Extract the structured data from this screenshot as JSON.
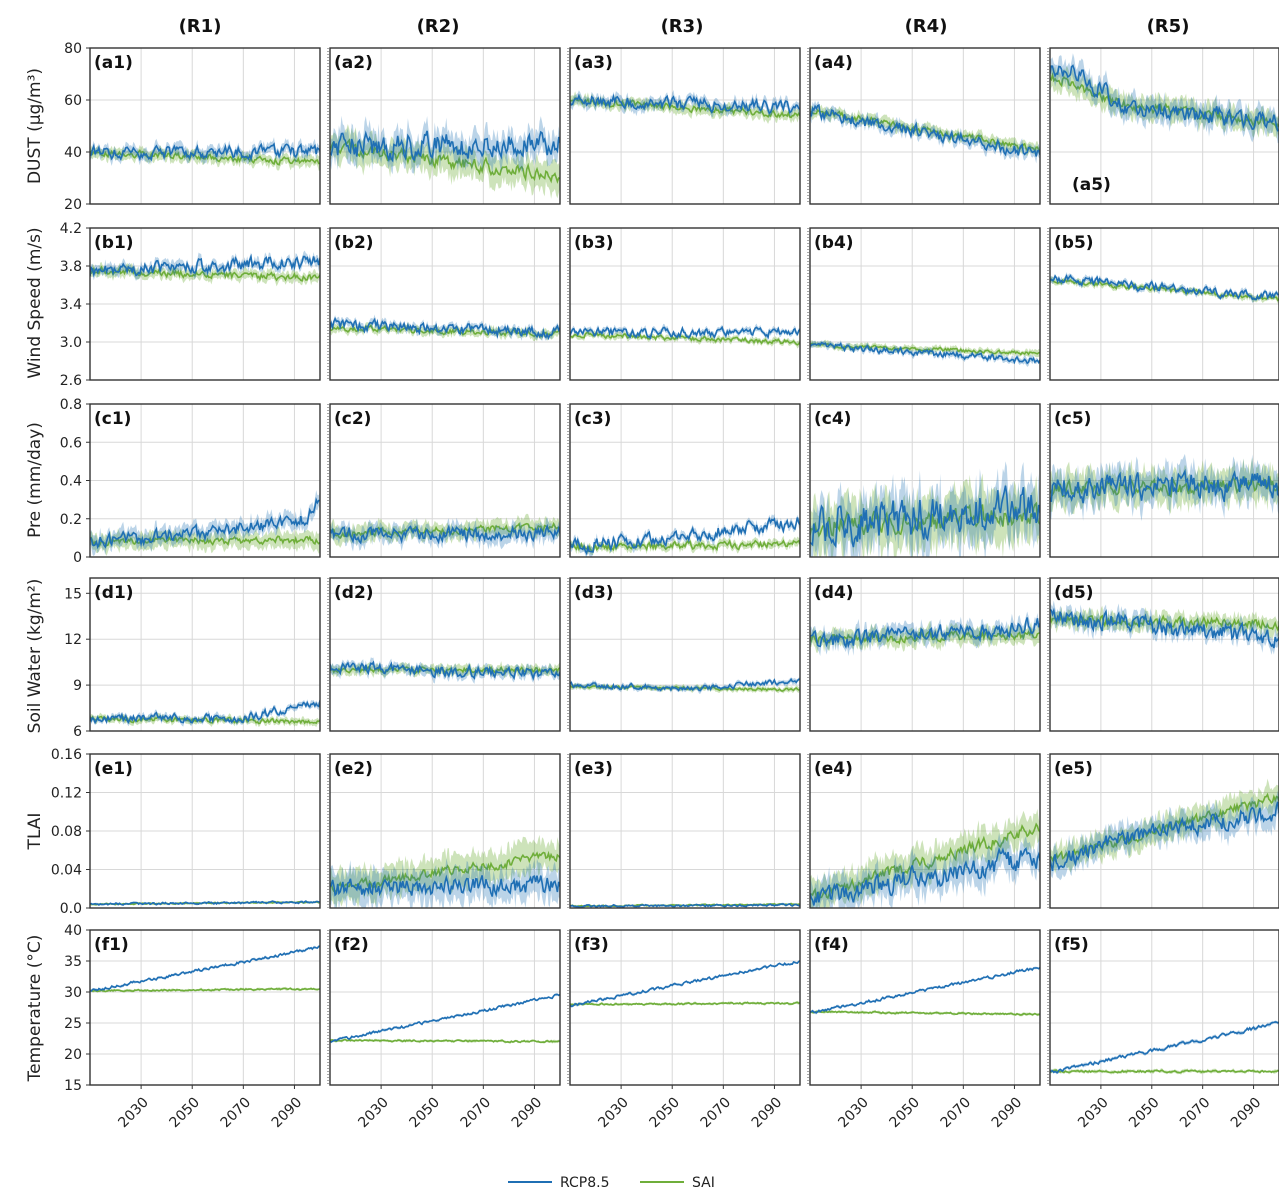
{
  "legend": [
    {
      "label": "RCP8.5",
      "color": "#1f6fb4"
    },
    {
      "label": "SAI",
      "color": "#6fae3a"
    }
  ],
  "chart_data": {
    "type": "line",
    "grid": true,
    "legend_placement": "bottom-center",
    "columns": [
      "(R1)",
      "(R2)",
      "(R3)",
      "(R4)",
      "(R5)"
    ],
    "xlim": [
      2010,
      2100
    ],
    "xticks": [
      "2030",
      "2050",
      "2070",
      "2090"
    ],
    "series_names": [
      "RCP8.5",
      "SAI"
    ],
    "rows": [
      {
        "ylabel": "DUST (μg/m³)",
        "ylim": [
          20,
          80
        ],
        "yticks": [
          "20",
          "40",
          "60",
          "80"
        ],
        "panels": [
          {
            "tag": "(a1)",
            "rcp": [
              [
                2010,
                40
              ],
              [
                2100,
                40
              ]
            ],
            "sai": [
              [
                2010,
                40
              ],
              [
                2100,
                36
              ]
            ],
            "noise": 2,
            "band": 2
          },
          {
            "tag": "(a2)",
            "rcp": [
              [
                2010,
                42
              ],
              [
                2100,
                43
              ]
            ],
            "sai": [
              [
                2010,
                42
              ],
              [
                2100,
                31
              ]
            ],
            "noise": 4,
            "band": 5
          },
          {
            "tag": "(a3)",
            "rcp": [
              [
                2010,
                60
              ],
              [
                2100,
                57
              ]
            ],
            "sai": [
              [
                2010,
                60
              ],
              [
                2100,
                54
              ]
            ],
            "noise": 2,
            "band": 2
          },
          {
            "tag": "(a4)",
            "rcp": [
              [
                2010,
                56
              ],
              [
                2100,
                39
              ]
            ],
            "sai": [
              [
                2010,
                56
              ],
              [
                2100,
                41
              ]
            ],
            "noise": 2,
            "band": 2
          },
          {
            "tag": "(a5)",
            "tag_position": "lower",
            "rcp": [
              [
                2010,
                71
              ],
              [
                2020,
                70
              ],
              [
                2040,
                58
              ],
              [
                2100,
                51
              ]
            ],
            "sai": [
              [
                2010,
                69
              ],
              [
                2040,
                58
              ],
              [
                2100,
                51
              ]
            ],
            "noise": 3,
            "band": 4
          }
        ]
      },
      {
        "ylabel": "Wind Speed (m/s)",
        "ylim": [
          2.6,
          4.2
        ],
        "yticks": [
          "2.6",
          "3.0",
          "3.4",
          "3.8",
          "4.2"
        ],
        "panels": [
          {
            "tag": "(b1)",
            "rcp": [
              [
                2010,
                3.75
              ],
              [
                2100,
                3.85
              ]
            ],
            "sai": [
              [
                2010,
                3.75
              ],
              [
                2100,
                3.68
              ]
            ],
            "noise": 0.06,
            "band": 0.05
          },
          {
            "tag": "(b2)",
            "rcp": [
              [
                2010,
                3.18
              ],
              [
                2100,
                3.1
              ]
            ],
            "sai": [
              [
                2010,
                3.15
              ],
              [
                2100,
                3.08
              ]
            ],
            "noise": 0.05,
            "band": 0.04
          },
          {
            "tag": "(b3)",
            "rcp": [
              [
                2010,
                3.1
              ],
              [
                2100,
                3.1
              ]
            ],
            "sai": [
              [
                2010,
                3.08
              ],
              [
                2100,
                3.0
              ]
            ],
            "noise": 0.04,
            "band": 0.03
          },
          {
            "tag": "(b4)",
            "rcp": [
              [
                2010,
                2.97
              ],
              [
                2100,
                2.8
              ]
            ],
            "sai": [
              [
                2010,
                2.97
              ],
              [
                2100,
                2.88
              ]
            ],
            "noise": 0.03,
            "band": 0.03
          },
          {
            "tag": "(b5)",
            "rcp": [
              [
                2010,
                3.67
              ],
              [
                2100,
                3.47
              ]
            ],
            "sai": [
              [
                2010,
                3.65
              ],
              [
                2100,
                3.45
              ]
            ],
            "noise": 0.04,
            "band": 0.03
          }
        ]
      },
      {
        "ylabel": "Pre (mm/day)",
        "ylim": [
          0,
          0.8
        ],
        "yticks": [
          "0",
          "0.2",
          "0.4",
          "0.6",
          "0.8"
        ],
        "panels": [
          {
            "tag": "(c1)",
            "rcp": [
              [
                2010,
                0.08
              ],
              [
                2060,
                0.13
              ],
              [
                2095,
                0.2
              ],
              [
                2100,
                0.3
              ]
            ],
            "sai": [
              [
                2010,
                0.08
              ],
              [
                2100,
                0.09
              ]
            ],
            "noise": 0.03,
            "band": 0.04
          },
          {
            "tag": "(c2)",
            "rcp": [
              [
                2010,
                0.12
              ],
              [
                2100,
                0.12
              ]
            ],
            "sai": [
              [
                2010,
                0.12
              ],
              [
                2100,
                0.16
              ]
            ],
            "noise": 0.03,
            "band": 0.04
          },
          {
            "tag": "(c3)",
            "rcp": [
              [
                2010,
                0.05
              ],
              [
                2060,
                0.12
              ],
              [
                2100,
                0.18
              ]
            ],
            "sai": [
              [
                2010,
                0.05
              ],
              [
                2100,
                0.07
              ]
            ],
            "noise": 0.03,
            "band": 0.02
          },
          {
            "tag": "(c4)",
            "rcp": [
              [
                2010,
                0.16
              ],
              [
                2100,
                0.28
              ]
            ],
            "sai": [
              [
                2010,
                0.16
              ],
              [
                2100,
                0.22
              ]
            ],
            "noise": 0.09,
            "band": 0.12
          },
          {
            "tag": "(c5)",
            "rcp": [
              [
                2010,
                0.36
              ],
              [
                2100,
                0.38
              ]
            ],
            "sai": [
              [
                2010,
                0.36
              ],
              [
                2100,
                0.37
              ]
            ],
            "noise": 0.06,
            "band": 0.08
          }
        ]
      },
      {
        "ylabel": "Soil Water (kg/m²)",
        "ylim": [
          6,
          16
        ],
        "yticks": [
          "6",
          "9",
          "12",
          "15"
        ],
        "panels": [
          {
            "tag": "(d1)",
            "rcp": [
              [
                2010,
                6.8
              ],
              [
                2070,
                6.8
              ],
              [
                2100,
                8.0
              ]
            ],
            "sai": [
              [
                2010,
                6.8
              ],
              [
                2100,
                6.6
              ]
            ],
            "noise": 0.25,
            "band": 0.2
          },
          {
            "tag": "(d2)",
            "rcp": [
              [
                2010,
                10.2
              ],
              [
                2100,
                9.7
              ]
            ],
            "sai": [
              [
                2010,
                10.0
              ],
              [
                2100,
                10.0
              ]
            ],
            "noise": 0.3,
            "band": 0.3
          },
          {
            "tag": "(d3)",
            "rcp": [
              [
                2010,
                9.0
              ],
              [
                2060,
                8.8
              ],
              [
                2100,
                9.3
              ]
            ],
            "sai": [
              [
                2010,
                8.9
              ],
              [
                2100,
                8.7
              ]
            ],
            "noise": 0.15,
            "band": 0.15
          },
          {
            "tag": "(d4)",
            "rcp": [
              [
                2010,
                11.8
              ],
              [
                2100,
                12.9
              ]
            ],
            "sai": [
              [
                2010,
                12.0
              ],
              [
                2100,
                12.3
              ]
            ],
            "noise": 0.45,
            "band": 0.5
          },
          {
            "tag": "(d5)",
            "rcp": [
              [
                2010,
                13.5
              ],
              [
                2100,
                12.0
              ]
            ],
            "sai": [
              [
                2010,
                13.3
              ],
              [
                2100,
                13.0
              ]
            ],
            "noise": 0.5,
            "band": 0.5
          }
        ]
      },
      {
        "ylabel": "TLAI",
        "ylim": [
          0,
          0.16
        ],
        "yticks": [
          "0.0",
          "0.04",
          "0.08",
          "0.12",
          "0.16"
        ],
        "panels": [
          {
            "tag": "(e1)",
            "rcp": [
              [
                2010,
                0.004
              ],
              [
                2100,
                0.006
              ]
            ],
            "sai": [
              [
                2010,
                0.004
              ],
              [
                2100,
                0.006
              ]
            ],
            "noise": 0.001,
            "band": 0.001
          },
          {
            "tag": "(e2)",
            "rcp": [
              [
                2010,
                0.02
              ],
              [
                2100,
                0.025
              ]
            ],
            "sai": [
              [
                2010,
                0.02
              ],
              [
                2100,
                0.055
              ]
            ],
            "noise": 0.008,
            "band": 0.015
          },
          {
            "tag": "(e3)",
            "rcp": [
              [
                2010,
                0.002
              ],
              [
                2100,
                0.003
              ]
            ],
            "sai": [
              [
                2010,
                0.002
              ],
              [
                2100,
                0.004
              ]
            ],
            "noise": 0.001,
            "band": 0.001
          },
          {
            "tag": "(e4)",
            "rcp": [
              [
                2010,
                0.01
              ],
              [
                2100,
                0.055
              ]
            ],
            "sai": [
              [
                2010,
                0.01
              ],
              [
                2100,
                0.085
              ]
            ],
            "noise": 0.01,
            "band": 0.015
          },
          {
            "tag": "(e5)",
            "rcp": [
              [
                2010,
                0.045
              ],
              [
                2040,
                0.075
              ],
              [
                2100,
                0.1
              ]
            ],
            "sai": [
              [
                2010,
                0.05
              ],
              [
                2100,
                0.115
              ]
            ],
            "noise": 0.008,
            "band": 0.012
          }
        ]
      },
      {
        "ylabel": "Temperature (°C)",
        "ylim": [
          15,
          40
        ],
        "yticks": [
          "15",
          "20",
          "25",
          "30",
          "35",
          "40"
        ],
        "panels": [
          {
            "tag": "(f1)",
            "rcp": [
              [
                2010,
                30.2
              ],
              [
                2100,
                37.2
              ]
            ],
            "sai": [
              [
                2010,
                30.2
              ],
              [
                2100,
                30.5
              ]
            ],
            "noise": 0.2,
            "band": 0.2
          },
          {
            "tag": "(f2)",
            "rcp": [
              [
                2010,
                22.0
              ],
              [
                2100,
                29.5
              ]
            ],
            "sai": [
              [
                2010,
                22.2
              ],
              [
                2100,
                22.0
              ]
            ],
            "noise": 0.2,
            "band": 0.2
          },
          {
            "tag": "(f3)",
            "rcp": [
              [
                2010,
                27.8
              ],
              [
                2100,
                35.0
              ]
            ],
            "sai": [
              [
                2010,
                28.0
              ],
              [
                2100,
                28.2
              ]
            ],
            "noise": 0.2,
            "band": 0.2
          },
          {
            "tag": "(f4)",
            "rcp": [
              [
                2010,
                26.6
              ],
              [
                2100,
                34.0
              ]
            ],
            "sai": [
              [
                2010,
                26.8
              ],
              [
                2100,
                26.4
              ]
            ],
            "noise": 0.2,
            "band": 0.2
          },
          {
            "tag": "(f5)",
            "rcp": [
              [
                2010,
                17.0
              ],
              [
                2100,
                25.0
              ]
            ],
            "sai": [
              [
                2010,
                17.2
              ],
              [
                2100,
                17.2
              ]
            ],
            "noise": 0.25,
            "band": 0.25
          }
        ]
      }
    ]
  }
}
